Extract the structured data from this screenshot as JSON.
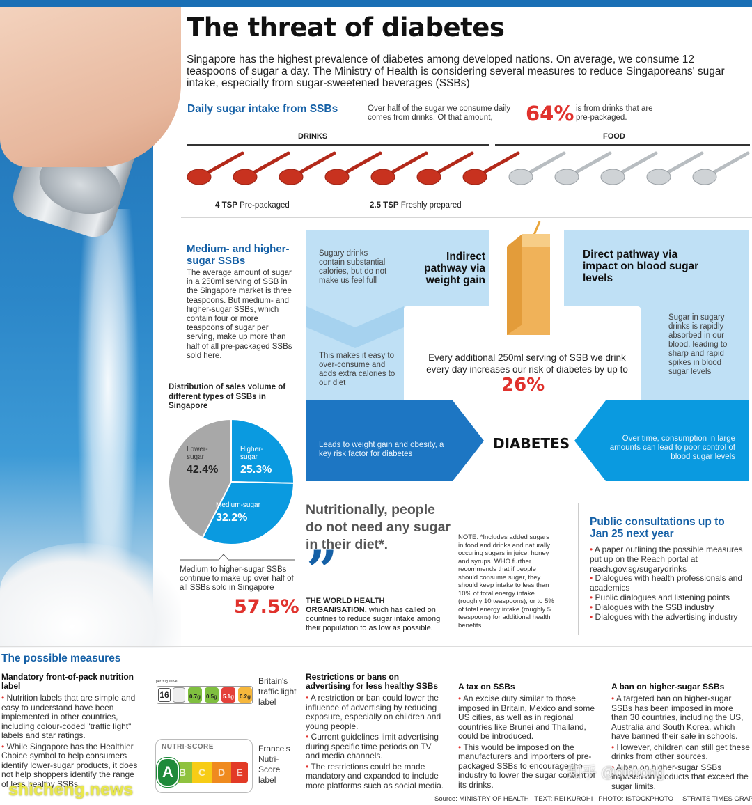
{
  "title": "The threat of diabetes",
  "intro": "Singapore has the highest prevalence of diabetes among developed nations. On average, we consume 12 teaspoons of sugar a day. The Ministry of Health is considering several measures to reduce Singaporeans' sugar intake, especially from sugar-sweetened beverages (SSBs)",
  "intake": {
    "heading": "Daily sugar intake from SSBs",
    "lead": "Over half of the sugar we consume daily comes from drinks. Of that amount,",
    "percent": "64%",
    "trail": "is from drinks that are pre-packaged.",
    "drinks_label": "DRINKS",
    "food_label": "FOOD",
    "prepack_bold": "4 TSP",
    "prepack_text": "Pre-packaged",
    "fresh_bold": "2.5 TSP",
    "fresh_text": "Freshly prepared",
    "colors": {
      "drink_spoon": "#c8321f",
      "food_spoon": "#cfd3d6"
    }
  },
  "ssb": {
    "heading": "Medium- and higher-sugar SSBs",
    "body": "The average amount of sugar in a 250ml serving of SSB in the Singapore market is three teaspoons. But medium- and higher-sugar SSBs, which contain four or more teaspoons of sugar per serving, make up more than half of all pre-packaged SSBs sold here.",
    "dist_heading": "Distribution of sales volume of different types of SSBs in Singapore",
    "bottom_text": "Medium to higher-sugar SSBs continue to make up over half of all SSBs sold in Singapore",
    "bottom_pct": "57.5%"
  },
  "chart_data": {
    "type": "pie",
    "title": "Distribution of sales volume of different types of SSBs in Singapore",
    "slices": [
      {
        "label": "Higher-sugar",
        "value": 25.3,
        "display": "25.3%",
        "color": "#0a9ae0"
      },
      {
        "label": "Medium-sugar",
        "value": 32.2,
        "display": "32.2%",
        "color": "#0a9ae0"
      },
      {
        "label": "Lower-sugar",
        "value": 42.4,
        "display": "42.4%",
        "color": "#a8a8a8"
      }
    ]
  },
  "pathway": {
    "indirect_title": "Indirect pathway via weight gain",
    "indirect_text1": "Sugary drinks contain substantial calories, but do not make us feel full",
    "indirect_text2": "This makes it easy to over-consume and adds extra calories to our diet",
    "direct_title": "Direct pathway via impact on blood sugar levels",
    "direct_text": "Sugar in sugary drinks is rapidly absorbed in our blood, leading to sharp and rapid spikes in blood sugar levels",
    "center_text": "Every additional 250ml serving of SSB we drink every day increases our risk of diabetes by up to",
    "center_pct": "26%",
    "left_bottom": "Leads to weight gain and obesity, a key risk factor for diabetes",
    "diabetes": "DIABETES",
    "right_bottom": "Over time, consumption in large amounts can lead to poor control of blood sugar levels"
  },
  "quote": {
    "text": "Nutritionally, people do not need any sugar in their diet*.",
    "mark": "”",
    "who": "THE WORLD HEALTH ORGANISATION,",
    "who_rest": "which has called on countries to reduce sugar intake among their population to as low as possible.",
    "note": "NOTE: *Includes added sugars in food and drinks and naturally occuring sugars in juice, honey and syrups. WHO further recommends that if people should consume sugar, they should keep intake to less than 10% of total energy intake (roughly 10 teaspoons), or to 5% of total energy intake (roughly 5 teaspoons) for additional health benefits."
  },
  "consult": {
    "heading": "Public consultations up to Jan 25 next year",
    "items": [
      "A paper outlining the possible measures put up on the Reach portal at reach.gov.sg/sugarydrinks",
      "Dialogues with health professionals and academics",
      "Public dialogues and listening points",
      "Dialogues with the SSB industry",
      "Dialogues with the advertising industry"
    ]
  },
  "measures": {
    "heading": "The possible measures",
    "m1_title": "Mandatory front-of-pack nutrition label",
    "m1_items": [
      "Nutrition labels that are simple and easy to understand have been implemented in other countries, including colour-coded \"traffic light\" labels and star ratings.",
      "While Singapore has the Healthier Choice symbol to help consumers identify lower-sugar products, it does not help shoppers identify the range of less healthy SSBs."
    ],
    "traffic_label": "Britain's traffic light label",
    "nutri_label": "France's Nutri-Score label",
    "nutri_title": "NUTRI-SCORE",
    "nutri_letters": [
      "A",
      "B",
      "C",
      "D",
      "E"
    ],
    "tl_per": "per 30g serve",
    "tl_kcal": "16",
    "tl_values": [
      "0.7g",
      "0.5g",
      "5.1g",
      "0.2g"
    ],
    "m2_title": "Restrictions or bans on advertising for less healthy SSBs",
    "m2_items": [
      "A restriction or ban could lower the influence of advertising by reducing exposure, especially on children and young people.",
      "Current guidelines limit advertising during specific time periods on TV and media channels.",
      "The restrictions could be made mandatory and expanded to include more platforms such as social media."
    ],
    "m3_title": "A tax on SSBs",
    "m3_items": [
      "An excise duty similar to those imposed in Britain, Mexico and some US cities, as well as in regional countries like Brunei and Thailand, could be introduced.",
      "This would be imposed on the manufacturers and importers of pre-packaged SSBs to encourage the industry to lower the sugar content of its drinks."
    ],
    "m4_title": "A ban on higher-sugar SSBs",
    "m4_items": [
      "A targeted ban on higher-sugar SSBs has been imposed in more than 30 countries, including the US, Australia and South Korea, which have banned their sale in schools.",
      "However, children can still get these drinks from other sources.",
      "A ban on higher-sugar SSBs imposed on products that exceed the sugar limits."
    ]
  },
  "footer": {
    "source": "Source: MINISTRY OF HEALTH",
    "text_credit": "TEXT: REI KUROHI",
    "photo_credit": "PHOTO: ISTOCKPHOTO",
    "graphics": "STRAITS TIMES GRAPHICS"
  },
  "watermark_left": "shicheng.news",
  "watermark_right": "知乎 @dinrong"
}
